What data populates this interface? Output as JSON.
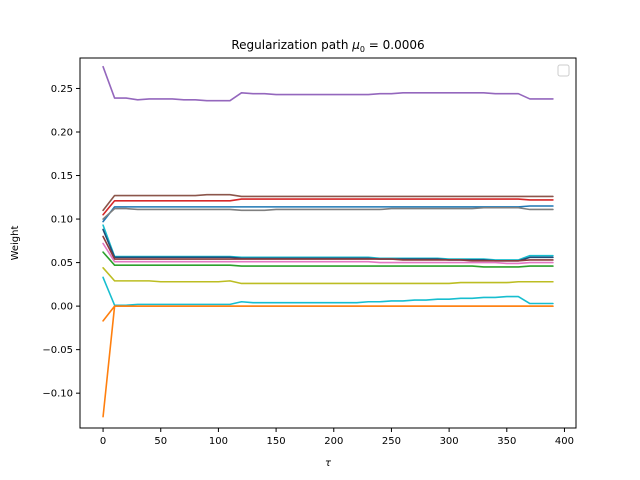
{
  "chart_data": {
    "type": "line",
    "title_prefix": "Regularization path ",
    "title_symbol": "μ",
    "title_subscript": "0",
    "title_suffix": " = 0.0006",
    "xlabel": "τ",
    "ylabel": "Weight",
    "xlim": [
      -20,
      410
    ],
    "ylim": [
      -0.14,
      0.285
    ],
    "xticks": [
      0,
      50,
      100,
      150,
      200,
      250,
      300,
      350,
      400
    ],
    "xtick_labels": [
      "0",
      "50",
      "100",
      "150",
      "200",
      "250",
      "300",
      "350",
      "400"
    ],
    "yticks": [
      -0.1,
      -0.05,
      0.0,
      0.05,
      0.1,
      0.15,
      0.2,
      0.25
    ],
    "ytick_labels": [
      "−0.10",
      "−0.05",
      "0.00",
      "0.05",
      "0.10",
      "0.15",
      "0.20",
      "0.25"
    ],
    "legend": "top-right, empty",
    "grid": false,
    "x": [
      0,
      10,
      20,
      30,
      40,
      50,
      60,
      70,
      80,
      90,
      100,
      110,
      120,
      130,
      140,
      150,
      160,
      170,
      180,
      190,
      200,
      210,
      220,
      230,
      240,
      250,
      260,
      270,
      280,
      290,
      300,
      310,
      320,
      330,
      340,
      350,
      360,
      370,
      380,
      390
    ],
    "series": [
      {
        "color": "#9467bd",
        "values": [
          0.275,
          0.239,
          0.239,
          0.237,
          0.238,
          0.238,
          0.238,
          0.237,
          0.237,
          0.236,
          0.236,
          0.236,
          0.245,
          0.244,
          0.244,
          0.243,
          0.243,
          0.243,
          0.243,
          0.243,
          0.243,
          0.243,
          0.243,
          0.243,
          0.244,
          0.244,
          0.245,
          0.245,
          0.245,
          0.245,
          0.245,
          0.245,
          0.245,
          0.245,
          0.244,
          0.244,
          0.244,
          0.238,
          0.238,
          0.238
        ]
      },
      {
        "color": "#8c564b",
        "values": [
          0.11,
          0.127,
          0.127,
          0.127,
          0.127,
          0.127,
          0.127,
          0.127,
          0.127,
          0.128,
          0.128,
          0.128,
          0.126,
          0.126,
          0.126,
          0.126,
          0.126,
          0.126,
          0.126,
          0.126,
          0.126,
          0.126,
          0.126,
          0.126,
          0.126,
          0.126,
          0.126,
          0.126,
          0.126,
          0.126,
          0.126,
          0.126,
          0.126,
          0.126,
          0.126,
          0.126,
          0.126,
          0.126,
          0.126,
          0.126
        ]
      },
      {
        "color": "#d62728",
        "values": [
          0.105,
          0.121,
          0.121,
          0.121,
          0.121,
          0.121,
          0.121,
          0.121,
          0.121,
          0.121,
          0.121,
          0.121,
          0.123,
          0.123,
          0.123,
          0.123,
          0.123,
          0.123,
          0.123,
          0.123,
          0.123,
          0.123,
          0.123,
          0.123,
          0.123,
          0.123,
          0.123,
          0.123,
          0.123,
          0.123,
          0.123,
          0.123,
          0.123,
          0.123,
          0.123,
          0.123,
          0.123,
          0.122,
          0.122,
          0.122
        ]
      },
      {
        "color": "#1f77b4",
        "values": [
          0.097,
          0.114,
          0.114,
          0.114,
          0.114,
          0.114,
          0.114,
          0.114,
          0.114,
          0.114,
          0.114,
          0.114,
          0.114,
          0.114,
          0.114,
          0.114,
          0.114,
          0.114,
          0.114,
          0.114,
          0.114,
          0.114,
          0.114,
          0.114,
          0.114,
          0.114,
          0.114,
          0.114,
          0.114,
          0.114,
          0.114,
          0.114,
          0.114,
          0.114,
          0.114,
          0.114,
          0.114,
          0.115,
          0.115,
          0.115
        ]
      },
      {
        "color": "#7f7f7f",
        "values": [
          0.1,
          0.112,
          0.112,
          0.111,
          0.111,
          0.111,
          0.111,
          0.111,
          0.111,
          0.111,
          0.111,
          0.111,
          0.11,
          0.11,
          0.11,
          0.111,
          0.111,
          0.111,
          0.111,
          0.111,
          0.111,
          0.111,
          0.111,
          0.111,
          0.111,
          0.112,
          0.112,
          0.112,
          0.112,
          0.112,
          0.112,
          0.112,
          0.112,
          0.113,
          0.113,
          0.113,
          0.113,
          0.111,
          0.111,
          0.111
        ]
      },
      {
        "color": "#17becf",
        "values": [
          0.093,
          0.057,
          0.057,
          0.057,
          0.057,
          0.057,
          0.057,
          0.057,
          0.057,
          0.057,
          0.057,
          0.057,
          0.056,
          0.056,
          0.056,
          0.056,
          0.056,
          0.056,
          0.056,
          0.056,
          0.056,
          0.056,
          0.056,
          0.056,
          0.055,
          0.055,
          0.055,
          0.055,
          0.055,
          0.055,
          0.054,
          0.054,
          0.054,
          0.054,
          0.053,
          0.053,
          0.053,
          0.058,
          0.058,
          0.058
        ]
      },
      {
        "color": "#1f4e7a",
        "values": [
          0.088,
          0.056,
          0.056,
          0.056,
          0.056,
          0.056,
          0.056,
          0.056,
          0.056,
          0.056,
          0.056,
          0.056,
          0.055,
          0.055,
          0.055,
          0.055,
          0.055,
          0.055,
          0.055,
          0.055,
          0.055,
          0.055,
          0.055,
          0.055,
          0.054,
          0.054,
          0.054,
          0.054,
          0.054,
          0.054,
          0.053,
          0.053,
          0.053,
          0.053,
          0.052,
          0.052,
          0.052,
          0.056,
          0.056,
          0.056
        ]
      },
      {
        "color": "#8b3a3a",
        "values": [
          0.08,
          0.054,
          0.054,
          0.054,
          0.054,
          0.054,
          0.054,
          0.054,
          0.054,
          0.054,
          0.054,
          0.054,
          0.054,
          0.054,
          0.054,
          0.054,
          0.054,
          0.054,
          0.054,
          0.054,
          0.054,
          0.054,
          0.054,
          0.054,
          0.054,
          0.054,
          0.053,
          0.053,
          0.053,
          0.053,
          0.053,
          0.053,
          0.052,
          0.052,
          0.052,
          0.052,
          0.052,
          0.053,
          0.053,
          0.053
        ]
      },
      {
        "color": "#e377c2",
        "values": [
          0.072,
          0.051,
          0.051,
          0.051,
          0.051,
          0.051,
          0.051,
          0.051,
          0.051,
          0.051,
          0.051,
          0.051,
          0.051,
          0.051,
          0.051,
          0.051,
          0.051,
          0.051,
          0.051,
          0.051,
          0.051,
          0.051,
          0.051,
          0.051,
          0.05,
          0.05,
          0.05,
          0.05,
          0.05,
          0.05,
          0.05,
          0.05,
          0.05,
          0.05,
          0.05,
          0.049,
          0.049,
          0.05,
          0.05,
          0.05
        ]
      },
      {
        "color": "#2ca02c",
        "values": [
          0.062,
          0.047,
          0.047,
          0.047,
          0.047,
          0.047,
          0.047,
          0.047,
          0.047,
          0.047,
          0.047,
          0.047,
          0.046,
          0.046,
          0.046,
          0.046,
          0.046,
          0.046,
          0.046,
          0.046,
          0.046,
          0.046,
          0.046,
          0.046,
          0.046,
          0.046,
          0.046,
          0.046,
          0.046,
          0.046,
          0.046,
          0.046,
          0.046,
          0.045,
          0.045,
          0.045,
          0.045,
          0.046,
          0.046,
          0.046
        ]
      },
      {
        "color": "#bcbd22",
        "values": [
          0.044,
          0.029,
          0.029,
          0.029,
          0.029,
          0.028,
          0.028,
          0.028,
          0.028,
          0.028,
          0.028,
          0.029,
          0.026,
          0.026,
          0.026,
          0.026,
          0.026,
          0.026,
          0.026,
          0.026,
          0.026,
          0.026,
          0.026,
          0.026,
          0.026,
          0.026,
          0.026,
          0.026,
          0.026,
          0.026,
          0.026,
          0.027,
          0.027,
          0.027,
          0.027,
          0.027,
          0.028,
          0.028,
          0.028,
          0.028
        ]
      },
      {
        "color": "#17becf",
        "values": [
          0.033,
          0.001,
          0.001,
          0.002,
          0.002,
          0.002,
          0.002,
          0.002,
          0.002,
          0.002,
          0.002,
          0.002,
          0.005,
          0.004,
          0.004,
          0.004,
          0.004,
          0.004,
          0.004,
          0.004,
          0.004,
          0.004,
          0.004,
          0.005,
          0.005,
          0.006,
          0.006,
          0.007,
          0.007,
          0.008,
          0.008,
          0.009,
          0.009,
          0.01,
          0.01,
          0.011,
          0.011,
          0.003,
          0.003,
          0.003
        ]
      },
      {
        "color": "#ff7f0e",
        "values": [
          -0.017,
          0.0,
          0.0,
          0.0,
          0.0,
          0.0,
          0.0,
          0.0,
          0.0,
          0.0,
          0.0,
          0.0,
          0.0,
          0.0,
          0.0,
          0.0,
          0.0,
          0.0,
          0.0,
          0.0,
          0.0,
          0.0,
          0.0,
          0.0,
          0.0,
          0.0,
          0.0,
          0.0,
          0.0,
          0.0,
          0.0,
          0.0,
          0.0,
          0.0,
          0.0,
          0.0,
          0.0,
          0.0,
          0.0,
          0.0
        ]
      },
      {
        "color": "#ff7f0e",
        "values": [
          -0.127,
          0.0,
          0.0,
          0.0,
          0.0,
          0.0,
          0.0,
          0.0,
          0.0,
          0.0,
          0.0,
          0.0,
          0.0,
          0.0,
          0.0,
          0.0,
          0.0,
          0.0,
          0.0,
          0.0,
          0.0,
          0.0,
          0.0,
          0.0,
          0.0,
          0.0,
          0.0,
          0.0,
          0.0,
          0.0,
          0.0,
          0.0,
          0.0,
          0.0,
          0.0,
          0.0,
          0.0,
          0.0,
          0.0,
          0.0
        ]
      }
    ]
  }
}
